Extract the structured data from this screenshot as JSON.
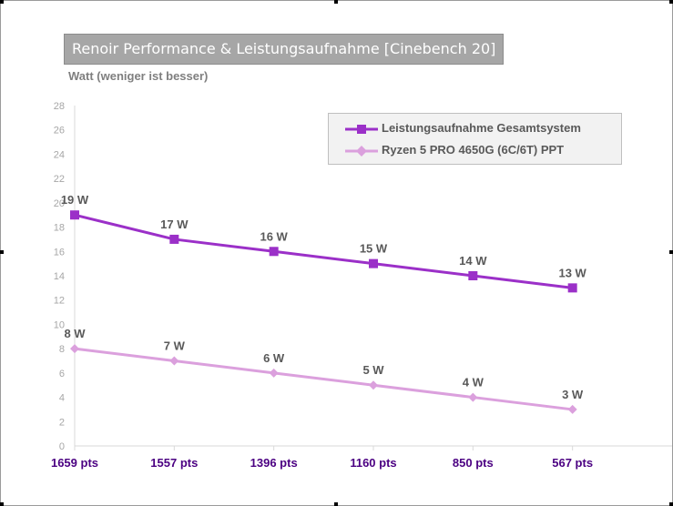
{
  "chart_data": {
    "type": "line",
    "title": "Renoir Performance & Leistungsaufnahme [Cinebench 20]",
    "ylabel": "Watt (weniger ist besser)",
    "xlabel": "",
    "categories": [
      "1659 pts",
      "1557 pts",
      "1396 pts",
      "1160 pts",
      "850 pts",
      "567 pts"
    ],
    "ylim": [
      0,
      28
    ],
    "yticks": [
      0,
      2,
      4,
      6,
      8,
      10,
      12,
      14,
      16,
      18,
      20,
      22,
      24,
      26,
      28
    ],
    "legend_position": "top-right",
    "series": [
      {
        "name": "Leistungsaufnahme Gesamtsystem",
        "values": [
          19,
          17,
          16,
          15,
          14,
          13
        ],
        "labels": [
          "19 W",
          "17 W",
          "16 W",
          "15 W",
          "14 W",
          "13 W"
        ],
        "color": "#9b30c8",
        "marker": "square"
      },
      {
        "name": "Ryzen 5 PRO 4650G (6C/6T) PPT",
        "values": [
          8,
          7,
          6,
          5,
          4,
          3
        ],
        "labels": [
          "8 W",
          "7 W",
          "6 W",
          "5 W",
          "4 W",
          "3 W"
        ],
        "color": "#dba0dd",
        "marker": "diamond"
      }
    ]
  },
  "colors": {
    "category_label": "#4b0082",
    "axis_tick": "#a6a6a6",
    "data_label": "#595959",
    "axis_line": "#d9d9d9"
  }
}
